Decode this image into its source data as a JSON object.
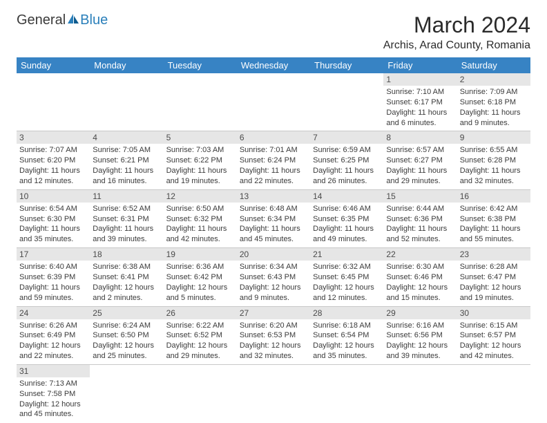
{
  "logo": {
    "part1": "General",
    "part2": "Blue"
  },
  "title": "March 2024",
  "location": "Archis, Arad County, Romania",
  "colors": {
    "header_bg": "#3783c4",
    "header_fg": "#ffffff",
    "daynum_bg": "#e6e6e6",
    "logo_blue": "#2a7fba"
  },
  "weekdays": [
    "Sunday",
    "Monday",
    "Tuesday",
    "Wednesday",
    "Thursday",
    "Friday",
    "Saturday"
  ],
  "cells": [
    [
      null,
      null,
      null,
      null,
      null,
      {
        "n": "1",
        "sr": "Sunrise: 7:10 AM",
        "ss": "Sunset: 6:17 PM",
        "d1": "Daylight: 11 hours",
        "d2": "and 6 minutes."
      },
      {
        "n": "2",
        "sr": "Sunrise: 7:09 AM",
        "ss": "Sunset: 6:18 PM",
        "d1": "Daylight: 11 hours",
        "d2": "and 9 minutes."
      }
    ],
    [
      {
        "n": "3",
        "sr": "Sunrise: 7:07 AM",
        "ss": "Sunset: 6:20 PM",
        "d1": "Daylight: 11 hours",
        "d2": "and 12 minutes."
      },
      {
        "n": "4",
        "sr": "Sunrise: 7:05 AM",
        "ss": "Sunset: 6:21 PM",
        "d1": "Daylight: 11 hours",
        "d2": "and 16 minutes."
      },
      {
        "n": "5",
        "sr": "Sunrise: 7:03 AM",
        "ss": "Sunset: 6:22 PM",
        "d1": "Daylight: 11 hours",
        "d2": "and 19 minutes."
      },
      {
        "n": "6",
        "sr": "Sunrise: 7:01 AM",
        "ss": "Sunset: 6:24 PM",
        "d1": "Daylight: 11 hours",
        "d2": "and 22 minutes."
      },
      {
        "n": "7",
        "sr": "Sunrise: 6:59 AM",
        "ss": "Sunset: 6:25 PM",
        "d1": "Daylight: 11 hours",
        "d2": "and 26 minutes."
      },
      {
        "n": "8",
        "sr": "Sunrise: 6:57 AM",
        "ss": "Sunset: 6:27 PM",
        "d1": "Daylight: 11 hours",
        "d2": "and 29 minutes."
      },
      {
        "n": "9",
        "sr": "Sunrise: 6:55 AM",
        "ss": "Sunset: 6:28 PM",
        "d1": "Daylight: 11 hours",
        "d2": "and 32 minutes."
      }
    ],
    [
      {
        "n": "10",
        "sr": "Sunrise: 6:54 AM",
        "ss": "Sunset: 6:30 PM",
        "d1": "Daylight: 11 hours",
        "d2": "and 35 minutes."
      },
      {
        "n": "11",
        "sr": "Sunrise: 6:52 AM",
        "ss": "Sunset: 6:31 PM",
        "d1": "Daylight: 11 hours",
        "d2": "and 39 minutes."
      },
      {
        "n": "12",
        "sr": "Sunrise: 6:50 AM",
        "ss": "Sunset: 6:32 PM",
        "d1": "Daylight: 11 hours",
        "d2": "and 42 minutes."
      },
      {
        "n": "13",
        "sr": "Sunrise: 6:48 AM",
        "ss": "Sunset: 6:34 PM",
        "d1": "Daylight: 11 hours",
        "d2": "and 45 minutes."
      },
      {
        "n": "14",
        "sr": "Sunrise: 6:46 AM",
        "ss": "Sunset: 6:35 PM",
        "d1": "Daylight: 11 hours",
        "d2": "and 49 minutes."
      },
      {
        "n": "15",
        "sr": "Sunrise: 6:44 AM",
        "ss": "Sunset: 6:36 PM",
        "d1": "Daylight: 11 hours",
        "d2": "and 52 minutes."
      },
      {
        "n": "16",
        "sr": "Sunrise: 6:42 AM",
        "ss": "Sunset: 6:38 PM",
        "d1": "Daylight: 11 hours",
        "d2": "and 55 minutes."
      }
    ],
    [
      {
        "n": "17",
        "sr": "Sunrise: 6:40 AM",
        "ss": "Sunset: 6:39 PM",
        "d1": "Daylight: 11 hours",
        "d2": "and 59 minutes."
      },
      {
        "n": "18",
        "sr": "Sunrise: 6:38 AM",
        "ss": "Sunset: 6:41 PM",
        "d1": "Daylight: 12 hours",
        "d2": "and 2 minutes."
      },
      {
        "n": "19",
        "sr": "Sunrise: 6:36 AM",
        "ss": "Sunset: 6:42 PM",
        "d1": "Daylight: 12 hours",
        "d2": "and 5 minutes."
      },
      {
        "n": "20",
        "sr": "Sunrise: 6:34 AM",
        "ss": "Sunset: 6:43 PM",
        "d1": "Daylight: 12 hours",
        "d2": "and 9 minutes."
      },
      {
        "n": "21",
        "sr": "Sunrise: 6:32 AM",
        "ss": "Sunset: 6:45 PM",
        "d1": "Daylight: 12 hours",
        "d2": "and 12 minutes."
      },
      {
        "n": "22",
        "sr": "Sunrise: 6:30 AM",
        "ss": "Sunset: 6:46 PM",
        "d1": "Daylight: 12 hours",
        "d2": "and 15 minutes."
      },
      {
        "n": "23",
        "sr": "Sunrise: 6:28 AM",
        "ss": "Sunset: 6:47 PM",
        "d1": "Daylight: 12 hours",
        "d2": "and 19 minutes."
      }
    ],
    [
      {
        "n": "24",
        "sr": "Sunrise: 6:26 AM",
        "ss": "Sunset: 6:49 PM",
        "d1": "Daylight: 12 hours",
        "d2": "and 22 minutes."
      },
      {
        "n": "25",
        "sr": "Sunrise: 6:24 AM",
        "ss": "Sunset: 6:50 PM",
        "d1": "Daylight: 12 hours",
        "d2": "and 25 minutes."
      },
      {
        "n": "26",
        "sr": "Sunrise: 6:22 AM",
        "ss": "Sunset: 6:52 PM",
        "d1": "Daylight: 12 hours",
        "d2": "and 29 minutes."
      },
      {
        "n": "27",
        "sr": "Sunrise: 6:20 AM",
        "ss": "Sunset: 6:53 PM",
        "d1": "Daylight: 12 hours",
        "d2": "and 32 minutes."
      },
      {
        "n": "28",
        "sr": "Sunrise: 6:18 AM",
        "ss": "Sunset: 6:54 PM",
        "d1": "Daylight: 12 hours",
        "d2": "and 35 minutes."
      },
      {
        "n": "29",
        "sr": "Sunrise: 6:16 AM",
        "ss": "Sunset: 6:56 PM",
        "d1": "Daylight: 12 hours",
        "d2": "and 39 minutes."
      },
      {
        "n": "30",
        "sr": "Sunrise: 6:15 AM",
        "ss": "Sunset: 6:57 PM",
        "d1": "Daylight: 12 hours",
        "d2": "and 42 minutes."
      }
    ],
    [
      {
        "n": "31",
        "sr": "Sunrise: 7:13 AM",
        "ss": "Sunset: 7:58 PM",
        "d1": "Daylight: 12 hours",
        "d2": "and 45 minutes."
      },
      null,
      null,
      null,
      null,
      null,
      null
    ]
  ]
}
